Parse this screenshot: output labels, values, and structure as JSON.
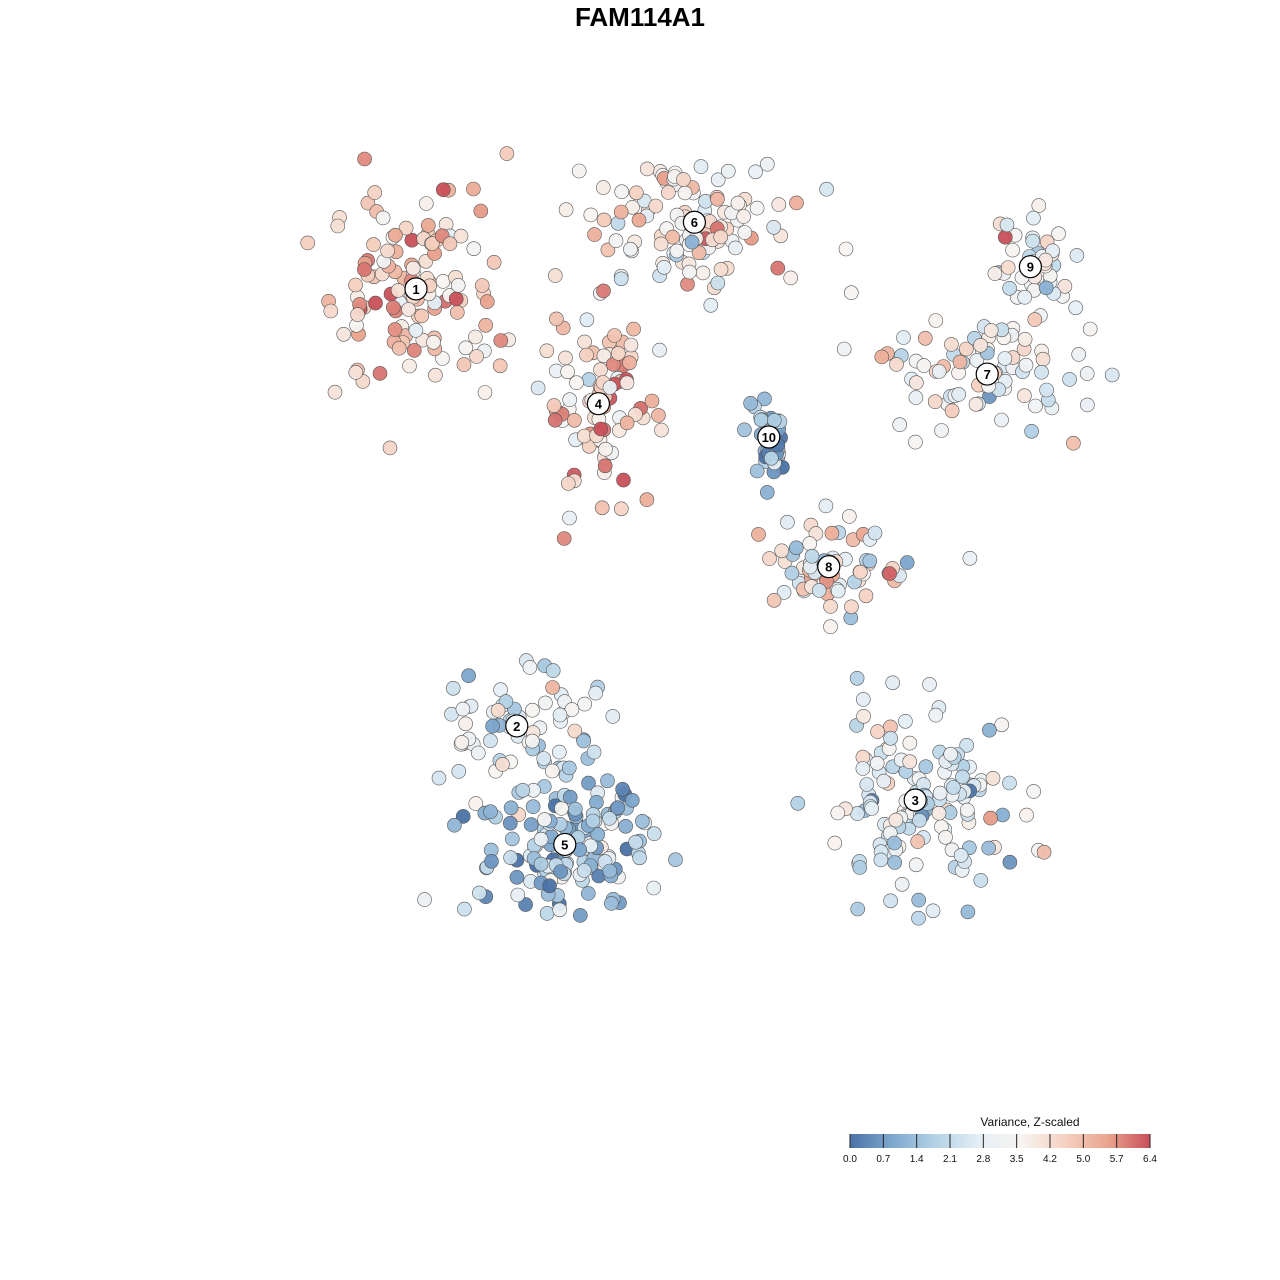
{
  "title": "FAM114A1",
  "chart_data": {
    "type": "scatter",
    "title": "FAM114A1",
    "xlabel": "",
    "ylabel": "",
    "legend": {
      "title": "Variance, Z-scaled",
      "position": "bottom-right",
      "range": [
        0,
        6.4
      ],
      "ticks": [
        "0.0",
        "0.7",
        "1.4",
        "2.1",
        "2.8",
        "3.5",
        "4.2",
        "5.0",
        "5.7",
        "6.4"
      ],
      "colors": [
        "#4a72a6",
        "#7fa8ce",
        "#b4d2e6",
        "#e4eef5",
        "#f8f4f1",
        "#f5d2c2",
        "#eaa48e",
        "#c8505a"
      ]
    },
    "grid": false,
    "axes_visible": false,
    "clusters": [
      {
        "label": "1",
        "x": -11.0,
        "y": 8.4,
        "mean_value": 4.6
      },
      {
        "label": "2",
        "x": -6.8,
        "y": -3.4,
        "mean_value": 2.8
      },
      {
        "label": "3",
        "x": 9.8,
        "y": -5.4,
        "mean_value": 2.6
      },
      {
        "label": "4",
        "x": -3.4,
        "y": 5.3,
        "mean_value": 4.5
      },
      {
        "label": "5",
        "x": -4.8,
        "y": -6.6,
        "mean_value": 1.7
      },
      {
        "label": "6",
        "x": 0.6,
        "y": 10.2,
        "mean_value": 3.8
      },
      {
        "label": "7",
        "x": 12.8,
        "y": 6.1,
        "mean_value": 3.4
      },
      {
        "label": "8",
        "x": 6.2,
        "y": 0.9,
        "mean_value": 3.4
      },
      {
        "label": "9",
        "x": 14.6,
        "y": 9.0,
        "mean_value": 3.1
      },
      {
        "label": "10",
        "x": 3.7,
        "y": 4.4,
        "mean_value": 1.2
      }
    ],
    "xlim": [
      -22.5,
      20
    ],
    "ylim": [
      -13.5,
      13.5
    ]
  }
}
